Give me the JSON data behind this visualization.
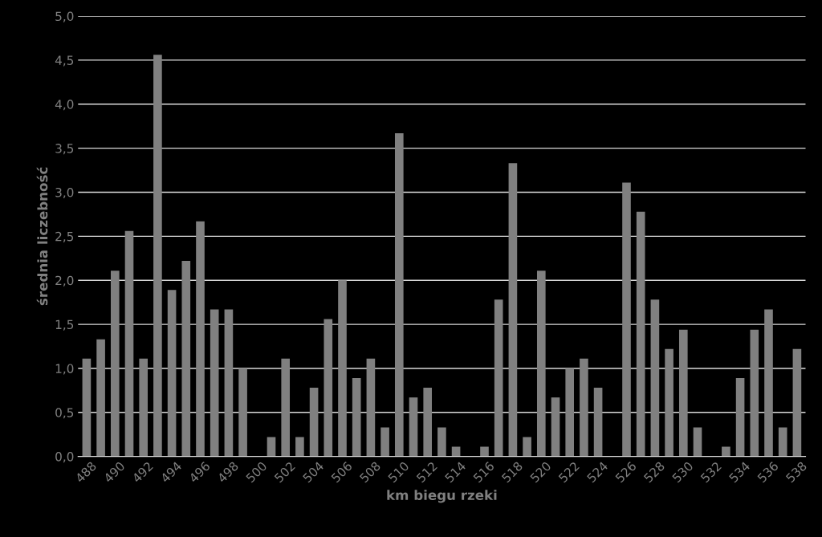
{
  "chart_data": {
    "type": "bar",
    "xlabel": "km biegu rzeki",
    "ylabel": "średnia liczebność",
    "categories": [
      "488",
      null,
      "490",
      null,
      "492",
      null,
      "494",
      null,
      "496",
      null,
      "498",
      null,
      "500",
      null,
      "502",
      null,
      "504",
      null,
      "506",
      null,
      "508",
      null,
      "510",
      null,
      "512",
      null,
      "514",
      null,
      "516",
      null,
      "518",
      null,
      "520",
      null,
      "522",
      null,
      "524",
      null,
      "526",
      null,
      "528",
      null,
      "530",
      null,
      "532",
      null,
      "534",
      null,
      "536",
      null,
      "538"
    ],
    "values": [
      1.11,
      1.33,
      2.11,
      2.56,
      1.11,
      4.56,
      1.89,
      2.22,
      2.67,
      1.67,
      1.67,
      1.0,
      0,
      0.22,
      1.11,
      0.22,
      0.78,
      1.56,
      2.0,
      0.89,
      1.11,
      0.33,
      3.67,
      0.67,
      0.78,
      0.33,
      0.11,
      0,
      0.11,
      1.78,
      3.33,
      0.22,
      2.11,
      0.67,
      1.0,
      1.11,
      0.78,
      0,
      3.11,
      2.78,
      1.78,
      1.22,
      1.44,
      0.33,
      0,
      0.11,
      0.89,
      1.44,
      1.67,
      0.33,
      1.22
    ],
    "color": "#808080",
    "ylim": [
      0,
      5
    ],
    "yticks": [
      {
        "value": 0,
        "label": "0,0"
      },
      {
        "value": 0.5,
        "label": "0,5"
      },
      {
        "value": 1,
        "label": "1,0"
      },
      {
        "value": 1.5,
        "label": "1,5"
      },
      {
        "value": 2,
        "label": "2,0"
      },
      {
        "value": 2.5,
        "label": "2,5"
      },
      {
        "value": 3,
        "label": "3,0"
      },
      {
        "value": 3.5,
        "label": "3,5"
      },
      {
        "value": 4,
        "label": "4,0"
      },
      {
        "value": 4.5,
        "label": "4,5"
      },
      {
        "value": 5,
        "label": "5,0"
      }
    ],
    "grid": "y"
  }
}
